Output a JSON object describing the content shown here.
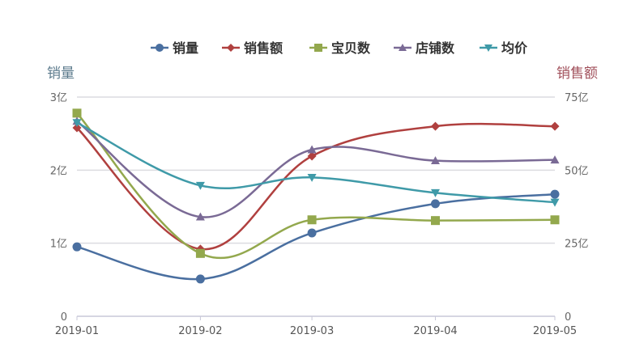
{
  "chart_data": {
    "type": "line",
    "x": [
      "2019-01-01",
      "2019-02-01",
      "2019-03-01",
      "2019-04-01",
      "2019-05-01"
    ],
    "x_tick_labels": [
      "2019-01",
      "2019-02",
      "2019-03",
      "2019-04",
      "2019-05"
    ],
    "y_left": {
      "label": "销量",
      "ylim": [
        0,
        3
      ],
      "ticks": [
        "0",
        "1亿",
        "2亿",
        "3亿"
      ],
      "color": "#5b7a8c"
    },
    "y_right": {
      "label": "销售额",
      "ylim": [
        0,
        75
      ],
      "ticks": [
        "0",
        "25亿",
        "50亿",
        "75亿"
      ],
      "color": "#a04f5a"
    },
    "grid": true,
    "legend_position": "top",
    "series": [
      {
        "name": "销量",
        "axis": "left",
        "marker": "circle",
        "color": "#4a6fa0",
        "values": [
          0.95,
          0.51,
          1.14,
          1.54,
          1.67
        ]
      },
      {
        "name": "销售额",
        "axis": "right",
        "marker": "diamond",
        "color": "#b0403f",
        "values": [
          64.5,
          23,
          54.8,
          65,
          65
        ]
      },
      {
        "name": "宝贝数",
        "axis": "left",
        "marker": "square",
        "color": "#93a84d",
        "values": [
          2.78,
          0.86,
          1.32,
          1.31,
          1.32
        ]
      },
      {
        "name": "店铺数",
        "axis": "left",
        "marker": "triangle",
        "color": "#7a6a95",
        "values": [
          2.67,
          1.36,
          2.28,
          2.13,
          2.14
        ]
      },
      {
        "name": "均价",
        "axis": "left",
        "marker": "triangle-down",
        "color": "#3f9aa8",
        "values": [
          2.65,
          1.79,
          1.9,
          1.69,
          1.56
        ]
      }
    ]
  }
}
